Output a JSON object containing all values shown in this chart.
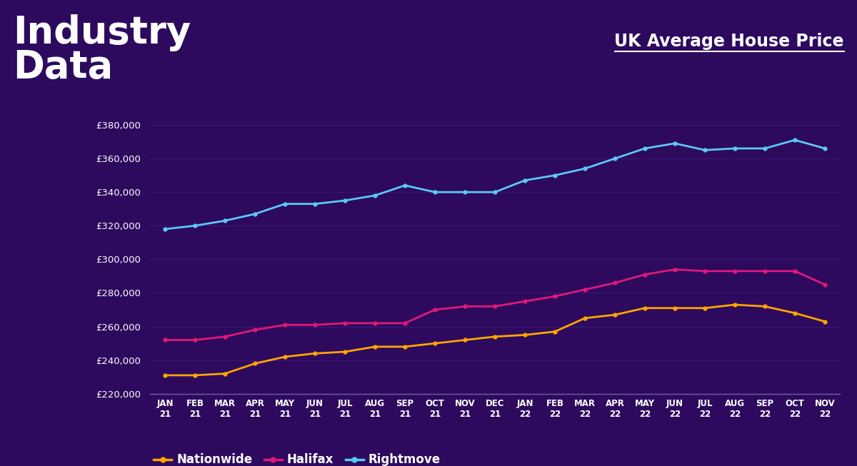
{
  "title_left": "Industry\nData",
  "title_right": "UK Average House Price",
  "background_color": "#2D0A5E",
  "text_color": "#FFFFFF",
  "x_labels": [
    "JAN\n21",
    "FEB\n21",
    "MAR\n21",
    "APR\n21",
    "MAY\n21",
    "JUN\n21",
    "JUL\n21",
    "AUG\n21",
    "SEP\n21",
    "OCT\n21",
    "NOV\n21",
    "DEC\n21",
    "JAN\n22",
    "FEB\n22",
    "MAR\n22",
    "APR\n22",
    "MAY\n22",
    "JUN\n22",
    "JUL\n22",
    "AUG\n22",
    "SEP\n22",
    "OCT\n22",
    "NOV\n22"
  ],
  "nationwide": [
    231000,
    231000,
    232000,
    238000,
    242000,
    244000,
    245000,
    248000,
    248000,
    250000,
    252000,
    254000,
    255000,
    257000,
    265000,
    267000,
    271000,
    271000,
    271000,
    273000,
    272000,
    268000,
    263000
  ],
  "halifax": [
    252000,
    252000,
    254000,
    258000,
    261000,
    261000,
    262000,
    262000,
    262000,
    270000,
    272000,
    272000,
    275000,
    278000,
    282000,
    286000,
    291000,
    294000,
    293000,
    293000,
    293000,
    293000,
    285000
  ],
  "rightmove": [
    318000,
    320000,
    323000,
    327000,
    333000,
    333000,
    335000,
    338000,
    344000,
    340000,
    340000,
    340000,
    347000,
    350000,
    354000,
    360000,
    366000,
    369000,
    365000,
    366000,
    366000,
    371000,
    366000
  ],
  "nationwide_color": "#FFA500",
  "halifax_color": "#E01878",
  "rightmove_color": "#5BC8F5",
  "ylim_min": 220000,
  "ylim_max": 385000,
  "yticks": [
    220000,
    240000,
    260000,
    280000,
    300000,
    320000,
    340000,
    360000,
    380000
  ],
  "legend_labels": [
    "Nationwide",
    "Halifax",
    "Rightmove"
  ]
}
